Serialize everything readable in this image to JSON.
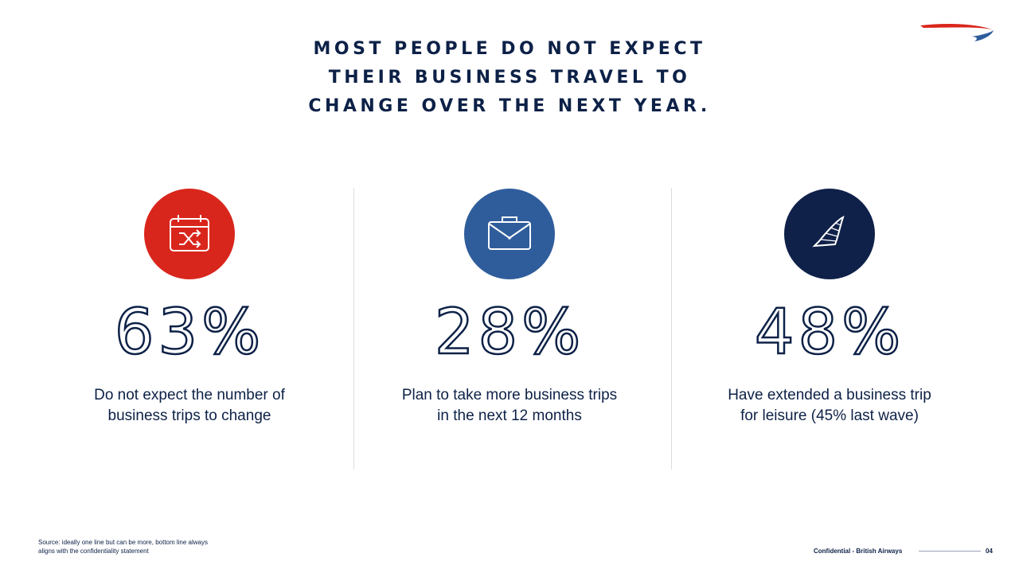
{
  "title": {
    "lines": [
      "MOST PEOPLE DO NOT EXPECT",
      "THEIR BUSINESS TRAVEL TO",
      "CHANGE OVER THE NEXT YEAR."
    ]
  },
  "colors": {
    "navy": "#0d2147",
    "red": "#d9261c",
    "blue": "#2f5d9c",
    "dark_navy": "#0f2149"
  },
  "stats": [
    {
      "icon": "calendar-shuffle-icon",
      "color": "#d9261c",
      "value": "63%",
      "description_lines": [
        "Do not expect the number of",
        "business trips to change"
      ]
    },
    {
      "icon": "briefcase-icon",
      "color": "#2f5d9c",
      "value": "28%",
      "description_lines": [
        "Plan to take more business trips",
        "in the next 12 months"
      ]
    },
    {
      "icon": "sail-icon",
      "color": "#0f2149",
      "value": "48%",
      "description_lines": [
        "Have extended a business trip",
        "for leisure (45% last wave)"
      ]
    }
  ],
  "footer": {
    "source_lines": [
      "Source: ideally one line but can be more, bottom line always",
      "aligns with the confidentiality statement"
    ],
    "confidential": "Confidential - British Airways",
    "page_number": "04"
  }
}
